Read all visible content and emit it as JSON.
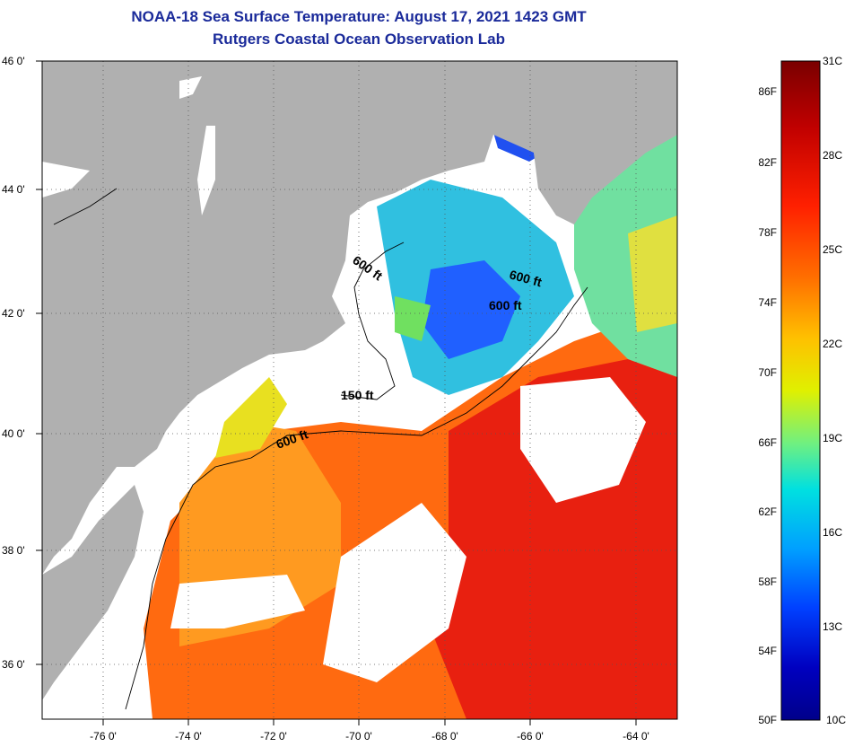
{
  "title": {
    "line1": "NOAA-18 Sea Surface Temperature:  August 17, 2021 1423 GMT",
    "line2": "Rutgers Coastal Ocean Observation Lab"
  },
  "map": {
    "lat_labels": [
      "46 0'",
      "44 0'",
      "42 0'",
      "40 0'",
      "38 0'",
      "36 0'"
    ],
    "lon_labels": [
      "-76 0'",
      "-74 0'",
      "-72 0'",
      "-70 0'",
      "-68 0'",
      "-66 0'",
      "-64 0'"
    ],
    "contour_labels": [
      "600 ft",
      "600 ft",
      "600 ft",
      "150 ft",
      "600 ft"
    ],
    "land_color": "#b0b0b0",
    "cloud_color": "#ffffff"
  },
  "colorbar": {
    "celsius_labels": [
      "31C",
      "28C",
      "25C",
      "22C",
      "19C",
      "16C",
      "13C",
      "10C"
    ],
    "fahrenheit_labels": [
      "86F",
      "82F",
      "78F",
      "74F",
      "70F",
      "66F",
      "62F",
      "58F",
      "54F",
      "50F"
    ],
    "colors": [
      "#7a0000",
      "#c00000",
      "#ff2000",
      "#ff7000",
      "#ffc000",
      "#e0f000",
      "#70f080",
      "#00e0e0",
      "#00a0ff",
      "#0040ff",
      "#0000c0",
      "#00008a"
    ]
  }
}
